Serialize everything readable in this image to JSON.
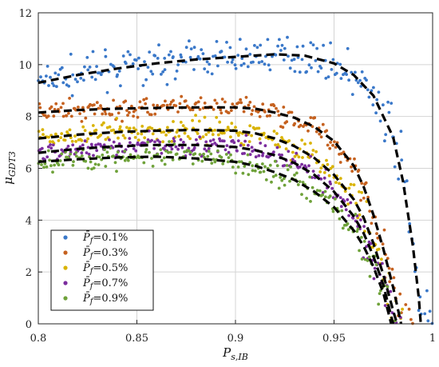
{
  "chart_data": {
    "type": "scatter",
    "xlabel_main": "P",
    "xlabel_sub": "s,IB",
    "ylabel_main": "μ",
    "ylabel_sub": "GDT3",
    "xlim": [
      0.8,
      1.0
    ],
    "ylim": [
      0,
      12
    ],
    "xticks": [
      "0.8",
      "0.85",
      "0.9",
      "0.95",
      "1"
    ],
    "yticks": [
      "0",
      "2",
      "4",
      "6",
      "8",
      "10",
      "12"
    ],
    "grid": true,
    "legend_position": "bottom-left",
    "fit_line_style": "black dashed",
    "series": [
      {
        "name": "P̄f=0.1%",
        "label_main": "P̄",
        "label_sub": "f",
        "label_rest": "=0.1%",
        "color": "#3a78c9",
        "fit": [
          [
            0.8,
            9.3
          ],
          [
            0.82,
            9.6
          ],
          [
            0.84,
            9.85
          ],
          [
            0.86,
            10.05
          ],
          [
            0.88,
            10.2
          ],
          [
            0.9,
            10.3
          ],
          [
            0.92,
            10.4
          ],
          [
            0.935,
            10.35
          ],
          [
            0.95,
            10.05
          ],
          [
            0.96,
            9.6
          ],
          [
            0.97,
            8.8
          ],
          [
            0.98,
            7.2
          ],
          [
            0.985,
            5.5
          ],
          [
            0.99,
            3.0
          ],
          [
            0.993,
            1.0
          ],
          [
            0.994,
            0.0
          ]
        ]
      },
      {
        "name": "P̄f=0.3%",
        "label_main": "P̄",
        "label_sub": "f",
        "label_rest": "=0.3%",
        "color": "#c5611f",
        "fit": [
          [
            0.8,
            8.15
          ],
          [
            0.82,
            8.25
          ],
          [
            0.84,
            8.3
          ],
          [
            0.86,
            8.33
          ],
          [
            0.88,
            8.35
          ],
          [
            0.9,
            8.35
          ],
          [
            0.91,
            8.3
          ],
          [
            0.92,
            8.15
          ],
          [
            0.93,
            7.95
          ],
          [
            0.94,
            7.6
          ],
          [
            0.95,
            7.05
          ],
          [
            0.96,
            6.1
          ],
          [
            0.965,
            5.3
          ],
          [
            0.97,
            4.2
          ],
          [
            0.975,
            2.9
          ],
          [
            0.98,
            1.4
          ],
          [
            0.984,
            0.0
          ]
        ]
      },
      {
        "name": "P̄f=0.5%",
        "label_main": "P̄",
        "label_sub": "f",
        "label_rest": "=0.5%",
        "color": "#d9b300",
        "fit": [
          [
            0.8,
            7.15
          ],
          [
            0.82,
            7.3
          ],
          [
            0.84,
            7.4
          ],
          [
            0.86,
            7.45
          ],
          [
            0.88,
            7.48
          ],
          [
            0.9,
            7.45
          ],
          [
            0.91,
            7.35
          ],
          [
            0.92,
            7.15
          ],
          [
            0.93,
            6.85
          ],
          [
            0.94,
            6.4
          ],
          [
            0.95,
            5.75
          ],
          [
            0.96,
            4.8
          ],
          [
            0.965,
            4.1
          ],
          [
            0.97,
            3.1
          ],
          [
            0.975,
            1.9
          ],
          [
            0.98,
            0.5
          ],
          [
            0.982,
            0.0
          ]
        ]
      },
      {
        "name": "P̄f=0.7%",
        "label_main": "P̄",
        "label_sub": "f",
        "label_rest": "=0.7%",
        "color": "#7b2d9e",
        "fit": [
          [
            0.8,
            6.6
          ],
          [
            0.82,
            6.75
          ],
          [
            0.84,
            6.85
          ],
          [
            0.86,
            6.9
          ],
          [
            0.88,
            6.9
          ],
          [
            0.9,
            6.82
          ],
          [
            0.91,
            6.7
          ],
          [
            0.92,
            6.5
          ],
          [
            0.93,
            6.2
          ],
          [
            0.94,
            5.75
          ],
          [
            0.95,
            5.1
          ],
          [
            0.96,
            4.15
          ],
          [
            0.965,
            3.5
          ],
          [
            0.97,
            2.6
          ],
          [
            0.975,
            1.5
          ],
          [
            0.979,
            0.3
          ],
          [
            0.98,
            0.0
          ]
        ]
      },
      {
        "name": "P̄f=0.9%",
        "label_main": "P̄",
        "label_sub": "f",
        "label_rest": "=0.9%",
        "color": "#6fa23a",
        "fit": [
          [
            0.8,
            6.25
          ],
          [
            0.82,
            6.35
          ],
          [
            0.84,
            6.42
          ],
          [
            0.86,
            6.45
          ],
          [
            0.88,
            6.38
          ],
          [
            0.9,
            6.25
          ],
          [
            0.91,
            6.1
          ],
          [
            0.92,
            5.85
          ],
          [
            0.93,
            5.55
          ],
          [
            0.94,
            5.1
          ],
          [
            0.95,
            4.5
          ],
          [
            0.96,
            3.6
          ],
          [
            0.965,
            3.0
          ],
          [
            0.97,
            2.2
          ],
          [
            0.975,
            1.2
          ],
          [
            0.978,
            0.3
          ],
          [
            0.979,
            0.0
          ]
        ]
      }
    ]
  }
}
